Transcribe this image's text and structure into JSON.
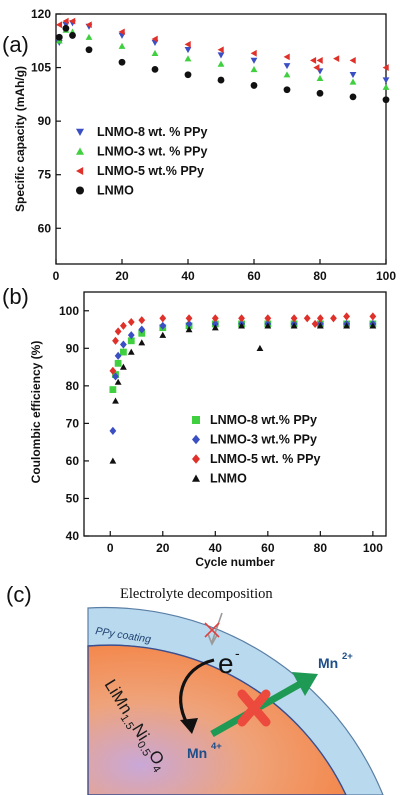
{
  "chart_data": [
    {
      "type": "scatter",
      "panel_label": "(a)",
      "xlabel": "",
      "ylabel": "Specific capacity (mAh/g)",
      "xlim": [
        0,
        100
      ],
      "ylim": [
        50,
        120
      ],
      "xticks": [
        0,
        20,
        40,
        60,
        80,
        100
      ],
      "yticks": [
        60,
        75,
        90,
        105,
        120
      ],
      "legend_position": "lower-left",
      "series": [
        {
          "name": "LNMO-8 wt. % PPy",
          "color": "#3b4fc4",
          "marker": "triangle-down",
          "x": [
            1,
            3,
            5,
            10,
            20,
            30,
            40,
            50,
            60,
            70,
            80,
            90,
            100
          ],
          "y": [
            112,
            117,
            117.5,
            116.5,
            114,
            112,
            110,
            108.5,
            107,
            105.5,
            104,
            103,
            101.5
          ]
        },
        {
          "name": "LNMO-3 wt. % PPy",
          "color": "#3fcf3f",
          "marker": "triangle-up",
          "x": [
            1,
            3,
            5,
            10,
            20,
            30,
            40,
            50,
            60,
            70,
            80,
            90,
            100
          ],
          "y": [
            112.5,
            115.5,
            115,
            113.5,
            111,
            109,
            107.5,
            106,
            104.5,
            103,
            102,
            101,
            99.5
          ]
        },
        {
          "name": "LNMO-5 wt.% PPy",
          "color": "#e0302a",
          "marker": "triangle-left",
          "x": [
            1,
            3,
            5,
            10,
            20,
            30,
            40,
            50,
            60,
            70,
            78,
            79,
            80,
            85,
            90,
            100
          ],
          "y": [
            117,
            118,
            118,
            117,
            115,
            113,
            111.5,
            110,
            109,
            108,
            107,
            105,
            107,
            107.5,
            107,
            105
          ]
        },
        {
          "name": "LNMO",
          "color": "#111111",
          "marker": "circle",
          "x": [
            1,
            3,
            5,
            10,
            20,
            30,
            40,
            50,
            60,
            70,
            80,
            90,
            100
          ],
          "y": [
            113.5,
            116,
            114,
            110,
            106.5,
            104.5,
            103,
            101.5,
            100,
            98.8,
            97.8,
            96.8,
            96
          ]
        }
      ]
    },
    {
      "type": "scatter",
      "panel_label": "(b)",
      "xlabel": "Cycle number",
      "ylabel": "Coulombic efficiency (%)",
      "xlim": [
        -10,
        105
      ],
      "ylim": [
        40,
        105
      ],
      "xticks": [
        0,
        20,
        40,
        60,
        80,
        100
      ],
      "yticks": [
        40,
        50,
        60,
        70,
        80,
        90,
        100
      ],
      "legend_position": "lower-right",
      "series": [
        {
          "name": "LNMO-8 wt.% PPy",
          "color": "#3fcf3f",
          "marker": "square",
          "x": [
            1,
            2,
            3,
            5,
            8,
            12,
            20,
            30,
            40,
            50,
            60,
            70,
            80,
            90,
            100
          ],
          "y": [
            79,
            83,
            86,
            89,
            92,
            94,
            95.5,
            96,
            96.5,
            96.5,
            96.5,
            96.5,
            96.5,
            96.5,
            96.5
          ]
        },
        {
          "name": "LNMO-3 wt.% PPy",
          "color": "#3b4fc4",
          "marker": "diamond",
          "x": [
            1,
            2,
            3,
            5,
            8,
            12,
            20,
            30,
            40,
            50,
            60,
            70,
            80,
            90,
            100
          ],
          "y": [
            68,
            82.5,
            88,
            91,
            93.5,
            95,
            96,
            96.5,
            96.5,
            96.5,
            96.5,
            96.5,
            96.5,
            96.5,
            96.5
          ]
        },
        {
          "name": "LNMO-5 wt. % PPy",
          "color": "#e0302a",
          "marker": "diamond",
          "x": [
            1,
            2,
            3,
            5,
            8,
            12,
            20,
            30,
            40,
            50,
            60,
            70,
            75,
            78,
            80,
            85,
            90,
            100
          ],
          "y": [
            84,
            92,
            94.5,
            96,
            97,
            97.5,
            98,
            98,
            98,
            98,
            98,
            98,
            98,
            96.5,
            98,
            98,
            98.5,
            98.5
          ]
        },
        {
          "name": "LNMO",
          "color": "#111111",
          "marker": "triangle-up",
          "x": [
            1,
            2,
            3,
            5,
            8,
            12,
            20,
            30,
            40,
            50,
            57,
            60,
            70,
            80,
            90,
            100
          ],
          "y": [
            60,
            76,
            81,
            85,
            89,
            91.5,
            93.5,
            95,
            95.5,
            96,
            90,
            96,
            96,
            96,
            96,
            96
          ]
        }
      ]
    }
  ],
  "schematic": {
    "panel_label": "(c)",
    "electrolyte_label": "Electrolyte decomposition",
    "coating_label": "PPy coating",
    "electron_label": "e",
    "electron_superscript": "-",
    "mn_out": "Mn",
    "mn_out_sup": "2+",
    "mn_in": "Mn",
    "mn_in_sup": "4+",
    "formula_parts": [
      "LiMn",
      "1.5",
      "Ni",
      "0.5",
      "O",
      "4"
    ],
    "colors": {
      "core": "#f0a070",
      "coating": "#b9d9ee",
      "arrow": "#1f9a55",
      "cross": "#ec4a3c",
      "mn": "#1d4e89"
    }
  }
}
